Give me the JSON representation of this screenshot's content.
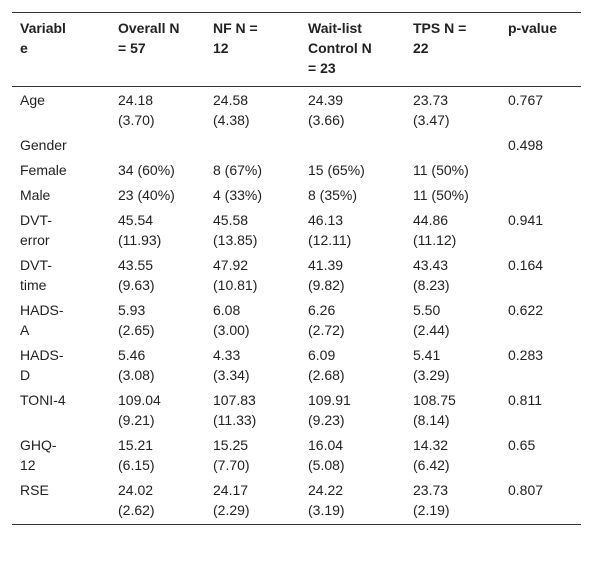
{
  "table": {
    "header": [
      "Variable",
      "Overall N = 57",
      "NF N = 12",
      "Wait-list Control N = 23",
      "TPS N = 22",
      "p-value"
    ],
    "rows": [
      [
        "Age",
        "24.18 (3.70)",
        "24.58 (4.38)",
        "24.39 (3.66)",
        "23.73 (3.47)",
        "0.767"
      ],
      [
        "Gender",
        null,
        null,
        null,
        null,
        "0.498"
      ],
      [
        "Female",
        "34 (60%)",
        "8 (67%)",
        "15 (65%)",
        "11 (50%)",
        null
      ],
      [
        "Male",
        "23 (40%)",
        "4 (33%)",
        "8 (35%)",
        "11 (50%)",
        null
      ],
      [
        "DVT-error",
        "45.54 (11.93)",
        "45.58 (13.85)",
        "46.13 (12.11)",
        "44.86 (11.12)",
        "0.941"
      ],
      [
        "DVT-time",
        "43.55 (9.63)",
        "47.92 (10.81)",
        "41.39 (9.82)",
        "43.43 (8.23)",
        "0.164"
      ],
      [
        "HADS-A",
        "5.93 (2.65)",
        "6.08 (3.00)",
        "6.26 (2.72)",
        "5.50 (2.44)",
        "0.622"
      ],
      [
        "HADS-D",
        "5.46 (3.08)",
        "4.33 (3.34)",
        "6.09 (2.68)",
        "5.41 (3.29)",
        "0.283"
      ],
      [
        "TONI-4",
        "109.04 (9.21)",
        "107.83 (11.33)",
        "109.91 (9.23)",
        "108.75 (8.14)",
        "0.811"
      ],
      [
        "GHQ-12",
        "15.21 (6.15)",
        "15.25 (7.70)",
        "16.04 (5.08)",
        "14.32 (6.42)",
        "0.65"
      ],
      [
        "RSE",
        "24.02 (2.62)",
        "24.17 (2.29)",
        "24.22 (3.19)",
        "23.73 (2.19)",
        "0.807"
      ]
    ]
  }
}
